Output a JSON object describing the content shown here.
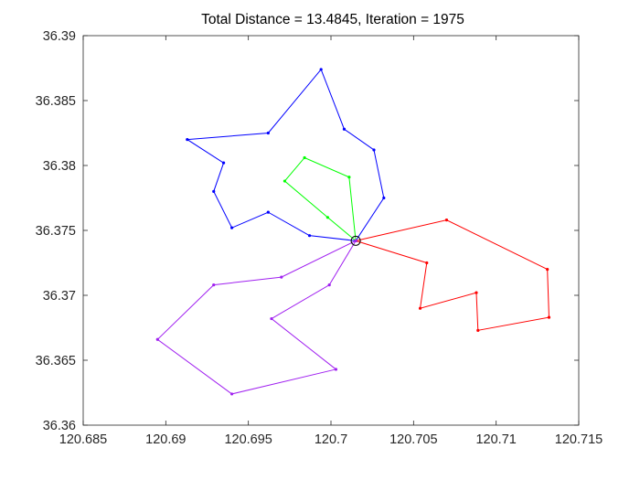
{
  "chart_data": {
    "type": "line",
    "title": "Total Distance = 13.4845, Iteration = 1975",
    "xlabel": "",
    "ylabel": "",
    "xlim": [
      120.685,
      120.715
    ],
    "ylim": [
      36.36,
      36.39
    ],
    "xticks": [
      120.685,
      120.69,
      120.695,
      120.7,
      120.705,
      120.71,
      120.715
    ],
    "yticks": [
      36.36,
      36.365,
      36.37,
      36.375,
      36.38,
      36.385,
      36.39
    ],
    "xtick_labels": [
      "120.685",
      "120.69",
      "120.695",
      "120.7",
      "120.705",
      "120.71",
      "120.715"
    ],
    "ytick_labels": [
      "36.36",
      "36.365",
      "36.37",
      "36.375",
      "36.38",
      "36.385",
      "36.39"
    ],
    "grid": false,
    "depot": {
      "x": 120.7015,
      "y": 36.3742,
      "color": "#000000"
    },
    "series": [
      {
        "color": "#0000ff",
        "points": [
          [
            120.7015,
            36.3742
          ],
          [
            120.7032,
            36.3775
          ],
          [
            120.7026,
            36.3812
          ],
          [
            120.7008,
            36.3828
          ],
          [
            120.6994,
            36.3874
          ],
          [
            120.6962,
            36.3825
          ],
          [
            120.6913,
            36.382
          ],
          [
            120.6935,
            36.3802
          ],
          [
            120.6929,
            36.378
          ],
          [
            120.694,
            36.3752
          ],
          [
            120.6962,
            36.3764
          ],
          [
            120.6987,
            36.3746
          ],
          [
            120.7015,
            36.3742
          ]
        ]
      },
      {
        "color": "#00ff00",
        "points": [
          [
            120.7015,
            36.3742
          ],
          [
            120.7011,
            36.3791
          ],
          [
            120.6984,
            36.3806
          ],
          [
            120.6972,
            36.3788
          ],
          [
            120.6998,
            36.376
          ],
          [
            120.7015,
            36.3742
          ]
        ]
      },
      {
        "color": "#ff0000",
        "points": [
          [
            120.7015,
            36.3742
          ],
          [
            120.707,
            36.3758
          ],
          [
            120.7131,
            36.372
          ],
          [
            120.7132,
            36.3683
          ],
          [
            120.7089,
            36.3673
          ],
          [
            120.7088,
            36.3702
          ],
          [
            120.7054,
            36.369
          ],
          [
            120.7058,
            36.3725
          ],
          [
            120.7015,
            36.3742
          ]
        ]
      },
      {
        "color": "#a020f0",
        "points": [
          [
            120.7015,
            36.3742
          ],
          [
            120.6999,
            36.3708
          ],
          [
            120.6964,
            36.3682
          ],
          [
            120.7003,
            36.3643
          ],
          [
            120.694,
            36.3624
          ],
          [
            120.6895,
            36.3666
          ],
          [
            120.6929,
            36.3708
          ],
          [
            120.697,
            36.3714
          ],
          [
            120.7015,
            36.3742
          ]
        ]
      }
    ]
  }
}
